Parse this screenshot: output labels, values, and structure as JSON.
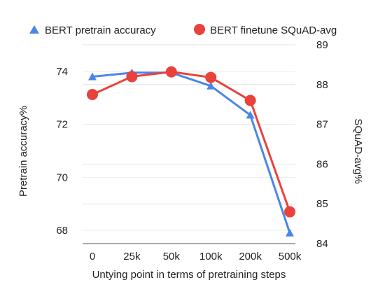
{
  "chart_data": {
    "type": "line",
    "categories": [
      "0",
      "25k",
      "50k",
      "100k",
      "200k",
      "500k"
    ],
    "series": [
      {
        "name": "BERT pretrain accuracy",
        "axis": "left",
        "color": "#4a86e8",
        "marker": "triangle",
        "values": [
          73.8,
          73.95,
          73.95,
          73.45,
          72.35,
          67.9
        ]
      },
      {
        "name": "BERT finetune SQuAD-avg",
        "axis": "right",
        "color": "#e8423b",
        "marker": "circle",
        "values": [
          87.75,
          88.2,
          88.32,
          88.18,
          87.6,
          84.8
        ]
      }
    ],
    "xlabel": "Untying point in terms of pretraining steps",
    "ylabel_left": "Pretrain accuracy%",
    "ylabel_right": "SQuAD-avg%",
    "ylim_left": [
      67.5,
      75.5
    ],
    "ylim_right": [
      84,
      89
    ],
    "yticks_left": [
      "68",
      "70",
      "72",
      "74"
    ],
    "yticks_right": [
      "84",
      "85",
      "86",
      "87",
      "88",
      "89"
    ],
    "grid": true,
    "legend_position": "top"
  }
}
